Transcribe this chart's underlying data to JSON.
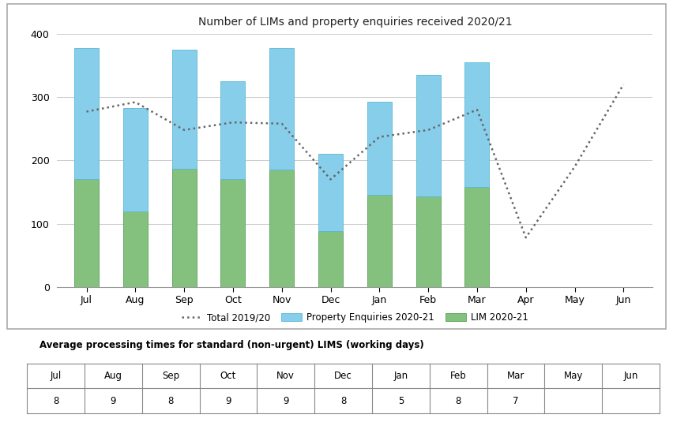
{
  "title": "Number of LIMs and property enquiries received 2020/21",
  "months": [
    "Jul",
    "Aug",
    "Sep",
    "Oct",
    "Nov",
    "Dec",
    "Jan",
    "Feb",
    "Mar",
    "Apr",
    "May",
    "Jun"
  ],
  "lim_values": [
    170,
    120,
    187,
    170,
    185,
    88,
    145,
    143,
    158,
    0,
    0,
    0
  ],
  "property_values": [
    207,
    162,
    188,
    155,
    192,
    122,
    148,
    192,
    197,
    0,
    0,
    0
  ],
  "dotted_values": [
    277,
    292,
    248,
    260,
    258,
    170,
    237,
    248,
    280,
    78,
    190,
    320
  ],
  "bar_color_lim": "#85C17E",
  "bar_color_property": "#87CEEB",
  "dotted_color": "#666666",
  "background_color": "#FFFFFF",
  "plot_bg_color": "#FFFFFF",
  "ylim": [
    0,
    400
  ],
  "yticks": [
    0,
    100,
    200,
    300,
    400
  ],
  "legend_labels": [
    "Total 2019/20",
    "Property Enquiries 2020-21",
    "LIM 2020-21"
  ],
  "table_header": [
    "Jul",
    "Aug",
    "Sep",
    "Oct",
    "Nov",
    "Dec",
    "Jan",
    "Feb",
    "Mar",
    "May",
    "Jun"
  ],
  "table_values": [
    "8",
    "9",
    "8",
    "9",
    "9",
    "8",
    "5",
    "8",
    "7",
    "",
    ""
  ],
  "table_title": "Average processing times for standard (non-urgent) LIMS (working days)"
}
